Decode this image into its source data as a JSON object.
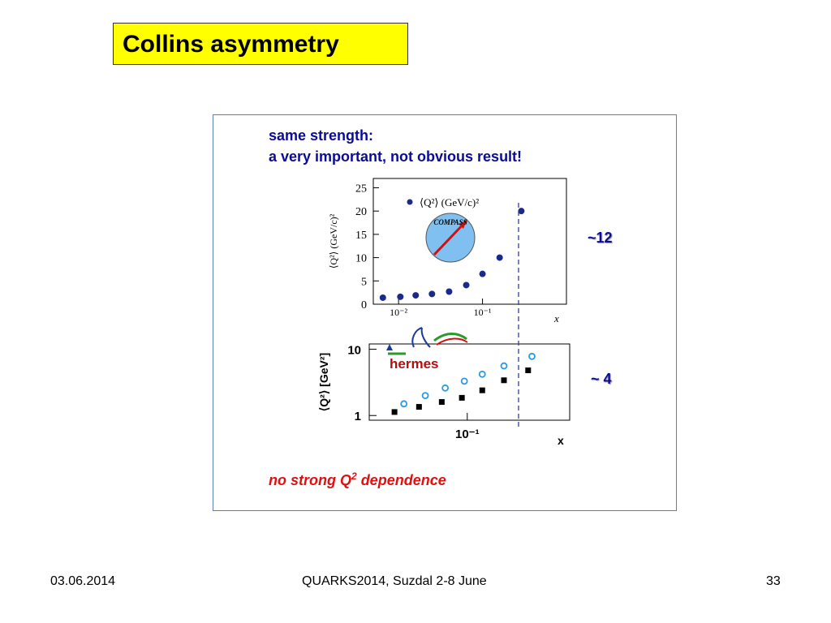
{
  "slide": {
    "title": "Collins asymmetry",
    "note_line1": "same strength:",
    "note_line2": "a very important, not obvious result!",
    "label_compass": "~12",
    "label_hermes": "~ 4",
    "red_note_prefix": "no strong Q",
    "red_note_sup": "2",
    "red_note_suffix": " dependence",
    "footer_date": "03.06.2014",
    "footer_conf": "QUARKS2014, Suzdal 2-8 June",
    "footer_page": "33"
  },
  "colors": {
    "title_bg": "#ffff00",
    "note_blue": "#0b0b9a",
    "red": "#e01010",
    "compass_points": "#1a2a8a",
    "hermes_open": "#2a9ae0",
    "hermes_filled": "#000000",
    "dashed_line": "#3a3aa0"
  },
  "chart_data": [
    {
      "type": "scatter",
      "experiment_logo": "COMPASS",
      "x_scale": "log",
      "xlabel": "x",
      "ylabel": "⟨Q²⟩ (GeV/c)²",
      "legend": "⟨Q²⟩ (GeV/c)²",
      "xlim": [
        0.005,
        1.0
      ],
      "ylim": [
        0,
        27
      ],
      "yticks": [
        0,
        5,
        10,
        15,
        20,
        25
      ],
      "xticks": [
        {
          "value": 0.01,
          "label": "10⁻²"
        },
        {
          "value": 0.1,
          "label": "10⁻¹"
        }
      ],
      "points": [
        {
          "x": 0.0065,
          "y": 1.4
        },
        {
          "x": 0.0105,
          "y": 1.6
        },
        {
          "x": 0.016,
          "y": 1.9
        },
        {
          "x": 0.025,
          "y": 2.2
        },
        {
          "x": 0.04,
          "y": 2.7
        },
        {
          "x": 0.064,
          "y": 4.1
        },
        {
          "x": 0.1,
          "y": 6.5
        },
        {
          "x": 0.16,
          "y": 10.0
        },
        {
          "x": 0.29,
          "y": 20.0
        }
      ]
    },
    {
      "type": "scatter",
      "experiment_logo": "hermes",
      "x_scale": "log",
      "y_scale": "log",
      "xlabel": "x",
      "ylabel": "⟨Q²⟩ [GeV²]",
      "xlim": [
        0.018,
        0.6
      ],
      "ylim": [
        0.85,
        12
      ],
      "yticks": [
        {
          "value": 1,
          "label": "1"
        },
        {
          "value": 10,
          "label": "10"
        }
      ],
      "xticks": [
        {
          "value": 0.1,
          "label": "10⁻¹"
        }
      ],
      "series": [
        {
          "marker": "open-circle",
          "points": [
            {
              "x": 0.033,
              "y": 1.5
            },
            {
              "x": 0.048,
              "y": 2.0
            },
            {
              "x": 0.068,
              "y": 2.6
            },
            {
              "x": 0.095,
              "y": 3.3
            },
            {
              "x": 0.13,
              "y": 4.2
            },
            {
              "x": 0.19,
              "y": 5.6
            },
            {
              "x": 0.31,
              "y": 7.8
            }
          ]
        },
        {
          "marker": "filled-square",
          "points": [
            {
              "x": 0.028,
              "y": 1.13
            },
            {
              "x": 0.043,
              "y": 1.35
            },
            {
              "x": 0.064,
              "y": 1.6
            },
            {
              "x": 0.091,
              "y": 1.85
            },
            {
              "x": 0.13,
              "y": 2.4
            },
            {
              "x": 0.19,
              "y": 3.4
            },
            {
              "x": 0.29,
              "y": 4.8
            }
          ]
        }
      ]
    }
  ]
}
